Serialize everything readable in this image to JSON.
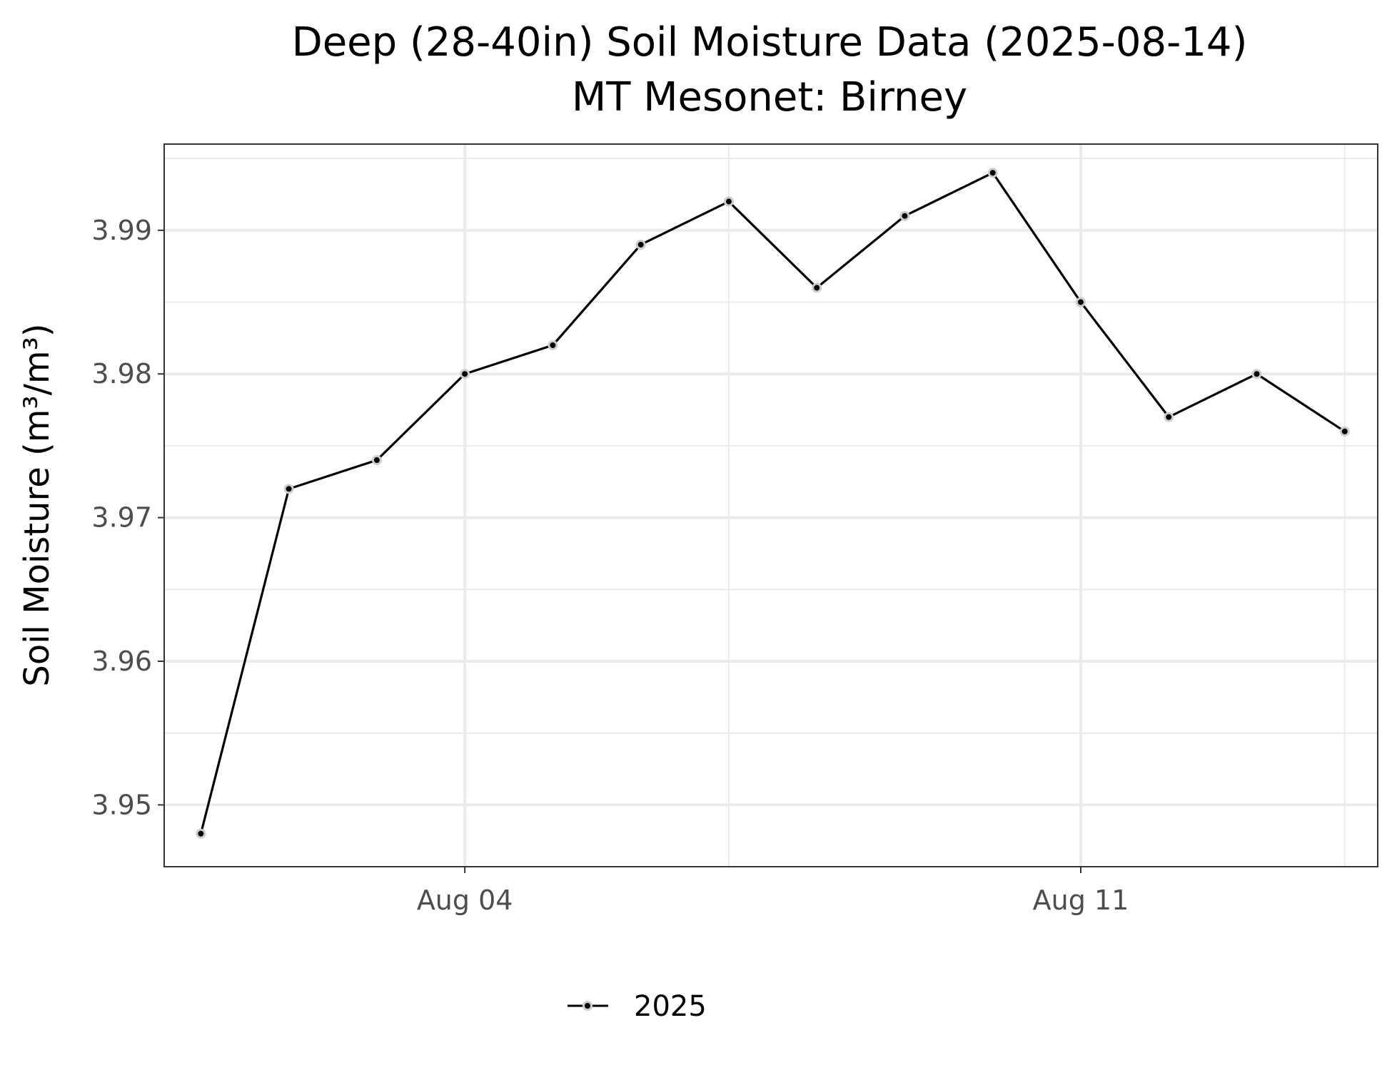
{
  "chart_data": {
    "type": "line",
    "title": "Deep (28-40in) Soil Moisture Data (2025-08-14)",
    "subtitle": "MT Mesonet: Birney",
    "xlabel": "",
    "ylabel": "Soil Moisture (m³/m³)",
    "x": [
      "2025-08-01",
      "2025-08-02",
      "2025-08-03",
      "2025-08-04",
      "2025-08-05",
      "2025-08-06",
      "2025-08-07",
      "2025-08-08",
      "2025-08-09",
      "2025-08-10",
      "2025-08-11",
      "2025-08-12",
      "2025-08-13",
      "2025-08-14"
    ],
    "series": [
      {
        "name": "2025",
        "values": [
          3.948,
          3.972,
          3.974,
          3.98,
          3.982,
          3.989,
          3.992,
          3.986,
          3.991,
          3.994,
          3.985,
          3.977,
          3.98,
          3.976
        ]
      }
    ],
    "x_ticks": [
      {
        "value": "2025-08-04",
        "label": "Aug 04"
      },
      {
        "value": "2025-08-11",
        "label": "Aug 11"
      }
    ],
    "x_minor_ticks": [
      "2025-07-31",
      "2025-08-07",
      "2025-08-14"
    ],
    "xlim": [
      "2025-07-31T14:00",
      "2025-08-14T09:00"
    ],
    "y_ticks": [
      3.95,
      3.96,
      3.97,
      3.98,
      3.99
    ],
    "y_tick_labels": [
      "3.95",
      "3.96",
      "3.97",
      "3.98",
      "3.99"
    ],
    "ylim": [
      3.9457,
      3.996
    ],
    "grid": true,
    "legend_position": "bottom",
    "colors": {
      "line": "#000000",
      "point_fill": "#000000",
      "point_halo": "#cccccc",
      "grid": "#ebebeb",
      "panel_border": "#333333",
      "tick_text": "#4d4d4d"
    }
  }
}
